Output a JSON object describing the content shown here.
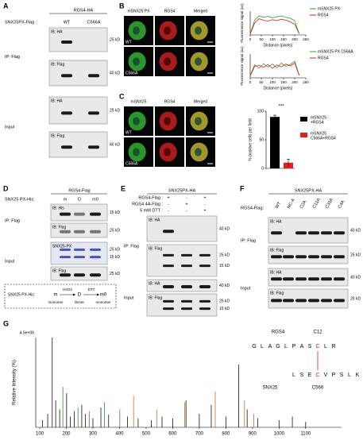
{
  "panels": {
    "a": {
      "label": "A",
      "header": "RGS4-HA",
      "row_label": "SNX25PX-Flag :",
      "lanes": [
        "WT",
        "C566A"
      ],
      "groups": [
        {
          "label": "IP: Flag",
          "blots": [
            {
              "label": "IB: HA",
              "kd": [
                "25 kD"
              ]
            },
            {
              "label": "IB: Flag",
              "kd": [
                "40 kD"
              ]
            }
          ]
        },
        {
          "label": "Input",
          "blots": [
            {
              "label": "IB: HA",
              "kd": [
                "25 kD"
              ]
            },
            {
              "label": "IB: Flag",
              "kd": [
                "40 kD"
              ]
            }
          ]
        }
      ]
    },
    "b": {
      "label": "B",
      "columns": [
        "mSNX25 PX",
        "RGS4",
        "Merged"
      ],
      "rows": [
        "WT",
        "C566A"
      ],
      "plots": [
        {
          "ylabel": "Fluorescence signal (au)",
          "xlabel": "Distance (pixels)",
          "xlim": [
            0,
            250
          ],
          "ylim": [
            0,
            100
          ],
          "xticks": [
            0,
            50,
            100,
            150,
            200,
            250
          ],
          "x": [
            0,
            20,
            40,
            60,
            80,
            100,
            120,
            140,
            160,
            180,
            200,
            220
          ],
          "series": [
            {
              "name": "mSNX25 PX",
              "color": "#2e9e2e",
              "values": [
                5,
                62,
                80,
                74,
                78,
                72,
                76,
                80,
                74,
                70,
                60,
                6
              ]
            },
            {
              "name": "RGS4",
              "color": "#d42020",
              "values": [
                4,
                50,
                68,
                62,
                58,
                64,
                60,
                66,
                62,
                55,
                45,
                5
              ]
            }
          ]
        },
        {
          "ylabel": "Fluorescence signal (au)",
          "xlabel": "Distance (pixels)",
          "xlim": [
            0,
            250
          ],
          "ylim": [
            0,
            100
          ],
          "xticks": [
            0,
            50,
            100,
            150,
            200,
            250
          ],
          "x": [
            0,
            20,
            40,
            60,
            80,
            100,
            120,
            140,
            160,
            180,
            200,
            220
          ],
          "series": [
            {
              "name": "mSNX25 PX C566A",
              "color": "#2e9e2e",
              "values": [
                10,
                55,
                40,
                60,
                45,
                58,
                42,
                62,
                48,
                56,
                70,
                12
              ]
            },
            {
              "name": "RGS4",
              "color": "#d42020",
              "values": [
                8,
                48,
                52,
                44,
                56,
                40,
                54,
                46,
                58,
                50,
                62,
                10
              ]
            }
          ]
        }
      ]
    },
    "c": {
      "label": "C",
      "columns": [
        "mSNX25",
        "RGS4",
        "Merged"
      ],
      "rows": [
        "WT",
        "C566A"
      ],
      "chart": {
        "type": "bar",
        "ylabel": "% positive cells per field",
        "ylim": [
          0,
          100
        ],
        "yticks": [
          0,
          50,
          100
        ],
        "significance": "***",
        "series": [
          {
            "name": [
              "mSNX25",
              "+RGS4"
            ],
            "color": "#000000",
            "value": 90,
            "error": 3
          },
          {
            "name": [
              "mSNX25",
              "C566A+RGS4"
            ],
            "color": "#e02020",
            "value": 10,
            "error": 6
          }
        ]
      }
    },
    "d": {
      "label": "D",
      "header": "RGS4-Flag",
      "row_label": "SNX25 PX-His:",
      "lanes": [
        "m",
        "D",
        "m0"
      ],
      "groups": [
        {
          "label": "IP: Flag",
          "blots": [
            {
              "label": "IB: His",
              "kd": [
                "15 kD"
              ]
            },
            {
              "label": "IB: Flag",
              "kd": [
                "25 kD"
              ]
            }
          ]
        },
        {
          "label": "Input",
          "blots": [
            {
              "label": "SNX25-PX",
              "kd": [
                "25 kD",
                "15 kD"
              ]
            },
            {
              "label": "IB: Flag",
              "kd": [
                "25 kD"
              ]
            }
          ]
        }
      ],
      "scheme": {
        "label": "SNX25 PX-His:",
        "states": [
          "m",
          "D",
          "m0"
        ],
        "reagents": [
          "H2O2",
          "DTT"
        ],
        "captions": [
          "monomer",
          "Dimer",
          "monomer"
        ]
      }
    },
    "e": {
      "label": "E",
      "header": "SNX25PX-HA",
      "conditions": [
        {
          "label": "RGS4-Flag :",
          "marks": [
            "+",
            "-",
            "+"
          ]
        },
        {
          "label": "RGS4 4A-Flag :",
          "marks": [
            "-",
            "+",
            "-"
          ]
        },
        {
          "label": "5 mM DTT :",
          "marks": [
            "-",
            "-",
            "+"
          ]
        }
      ],
      "groups": [
        {
          "label": "IP: Flag",
          "blots": [
            {
              "label": "IB: HA",
              "kd": [
                "40 kD"
              ]
            },
            {
              "label": "IB: Flag",
              "kd": [
                "25 kD",
                "15 kD"
              ]
            }
          ]
        },
        {
          "label": "Input",
          "blots": [
            {
              "label": "IB: HA",
              "kd": [
                "40 kD"
              ]
            },
            {
              "label": "IB: Flag",
              "kd": [
                "25 kD",
                "15 kD"
              ]
            }
          ]
        }
      ]
    },
    "f": {
      "label": "F",
      "header": "SNX25PX-HA",
      "row_label": "RGS4-Flag:",
      "lanes": [
        "WT",
        "NC-A",
        "C2A",
        "C12A",
        "C33A",
        "C4A"
      ],
      "groups": [
        {
          "label": "IP: Flag",
          "blots": [
            {
              "label": "IB: HA",
              "kd": [
                "40 kD"
              ]
            },
            {
              "label": "IB: Flag",
              "kd": [
                "25 kD"
              ]
            }
          ]
        },
        {
          "label": "Input",
          "blots": [
            {
              "label": "IB: HA",
              "kd": [
                "40 kD"
              ]
            },
            {
              "label": "IB: Flag",
              "kd": [
                "25 kD"
              ]
            }
          ]
        }
      ]
    },
    "g": {
      "label": "G",
      "ylabel": "Relative Intensity (%)",
      "scale": "4.5e+06",
      "xlim": [
        85,
        1235
      ],
      "ylim": [
        0,
        100
      ],
      "xticks": [
        100,
        200,
        300,
        400,
        500,
        600,
        700,
        800,
        900,
        1000,
        1100
      ],
      "series": [
        {
          "color": "#111111",
          "x": [
            110,
            130,
            147,
            160,
            175,
            201,
            215,
            230,
            258,
            272,
            300,
            330,
            359,
            430,
            470,
            520,
            560,
            600,
            650,
            700,
            745,
            800,
            848,
            880,
            920,
            1000,
            1050,
            1100
          ],
          "values": [
            8,
            15,
            100,
            30,
            20,
            38,
            12,
            18,
            25,
            15,
            10,
            22,
            14,
            12,
            10,
            8,
            12,
            10,
            30,
            15,
            25,
            12,
            70,
            20,
            10,
            8,
            12,
            6
          ]
        },
        {
          "color": "#2e8b2e",
          "x": [
            187,
            244,
            286,
            343,
            401
          ],
          "values": [
            45,
            22,
            18,
            28,
            20
          ]
        },
        {
          "color": "#d2691e",
          "x": [
            453,
            540,
            645,
            760,
            870,
            905
          ],
          "values": [
            35,
            20,
            28,
            40,
            30,
            15
          ]
        }
      ],
      "inset": {
        "top_name": "RGS4",
        "top_site": "C12",
        "top_seq": [
          "G",
          "L",
          "A",
          "G",
          "L",
          "P",
          "A",
          "S",
          "C",
          "L",
          "R"
        ],
        "bottom_name": "SNX25",
        "bottom_site": "C566",
        "bottom_seq": [
          "L",
          "S",
          "E",
          "C",
          "V",
          "P",
          "S",
          "L",
          "K"
        ]
      }
    }
  }
}
